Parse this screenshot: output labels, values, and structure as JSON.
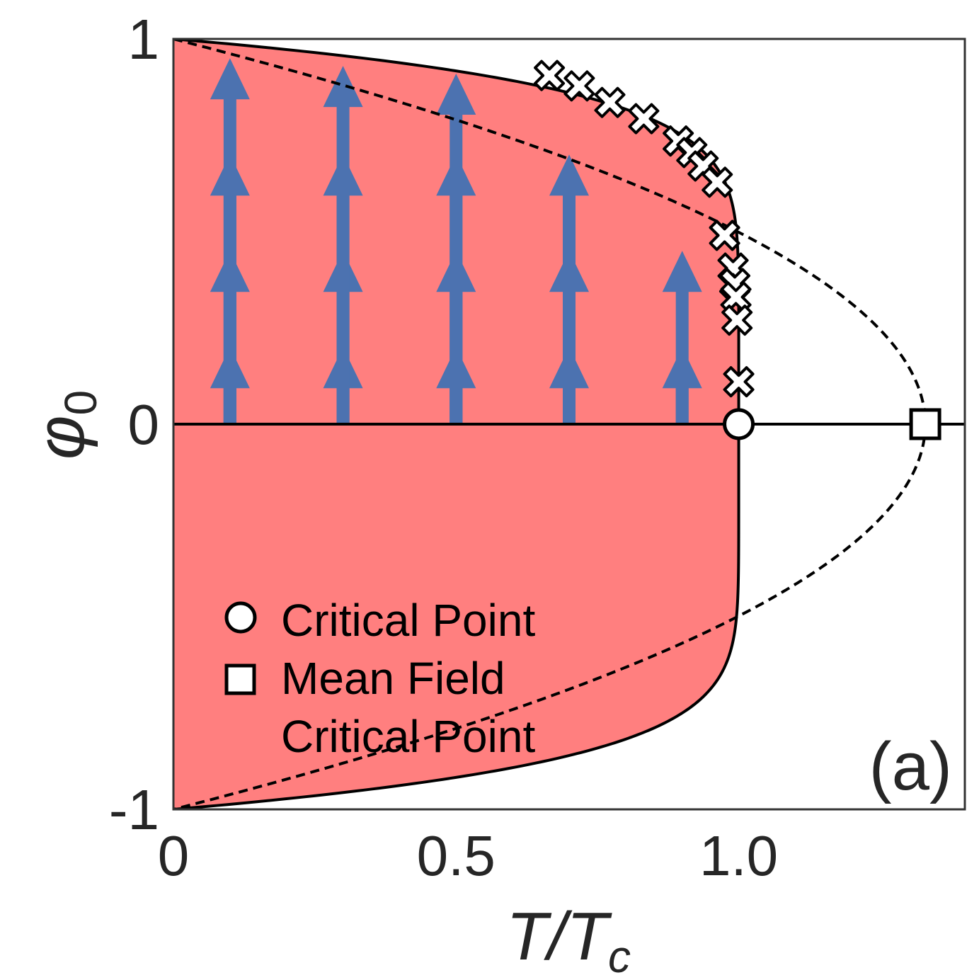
{
  "chart_data": {
    "type": "line",
    "panel_label": "(a)",
    "xlabel": "T/T",
    "xlabel_sub": "c",
    "ylabel": "φ",
    "ylabel_sub": "0",
    "xlim": [
      0,
      1.4
    ],
    "ylim": [
      -1,
      1
    ],
    "xticks": [
      {
        "value": 0,
        "label": "0"
      },
      {
        "value": 0.5,
        "label": "0.5"
      },
      {
        "value": 1.0,
        "label": "1.0"
      }
    ],
    "yticks": [
      {
        "value": -1,
        "label": "-1"
      },
      {
        "value": 0,
        "label": "0"
      },
      {
        "value": 1,
        "label": "1"
      }
    ],
    "grid": false,
    "colors": {
      "ordered_region": "#ff7f7f",
      "arrows": "#4c72b0",
      "boundary": "#000000",
      "frame": "#333333"
    },
    "series": [
      {
        "kind": "boundary_curve",
        "tc": 1.0,
        "exponent": 0.125
      },
      {
        "kind": "mean_field_curve",
        "tc": 1.33,
        "exponent": 0.5
      },
      {
        "kind": "zero_line",
        "y": 0
      }
    ],
    "data_points": [
      {
        "x": 0.665,
        "y": 0.905
      },
      {
        "x": 0.718,
        "y": 0.878
      },
      {
        "x": 0.772,
        "y": 0.835
      },
      {
        "x": 0.832,
        "y": 0.793
      },
      {
        "x": 0.893,
        "y": 0.735
      },
      {
        "x": 0.917,
        "y": 0.705
      },
      {
        "x": 0.937,
        "y": 0.67
      },
      {
        "x": 0.962,
        "y": 0.628
      },
      {
        "x": 0.975,
        "y": 0.49
      },
      {
        "x": 0.99,
        "y": 0.405
      },
      {
        "x": 0.993,
        "y": 0.365
      },
      {
        "x": 0.995,
        "y": 0.33
      },
      {
        "x": 0.997,
        "y": 0.27
      },
      {
        "x": 1.0,
        "y": 0.11
      }
    ],
    "critical_point": {
      "x": 1.0,
      "y": 0
    },
    "mean_field_critical_point": {
      "x": 1.33,
      "y": 0
    },
    "arrow_columns": [
      {
        "x": 0.1,
        "heights": [
          0.2,
          0.45,
          0.7,
          0.95
        ]
      },
      {
        "x": 0.3,
        "heights": [
          0.2,
          0.45,
          0.7,
          0.93
        ]
      },
      {
        "x": 0.5,
        "heights": [
          0.2,
          0.45,
          0.7,
          0.91
        ]
      },
      {
        "x": 0.7,
        "heights": [
          0.2,
          0.45,
          0.7
        ]
      },
      {
        "x": 0.9,
        "heights": [
          0.2,
          0.45
        ]
      }
    ],
    "legend": {
      "placement": "lower-left",
      "entries": [
        {
          "marker": "circle",
          "label": "Critical Point"
        },
        {
          "marker": "square",
          "label": "Mean Field",
          "label2": "Critical Point"
        }
      ]
    }
  }
}
